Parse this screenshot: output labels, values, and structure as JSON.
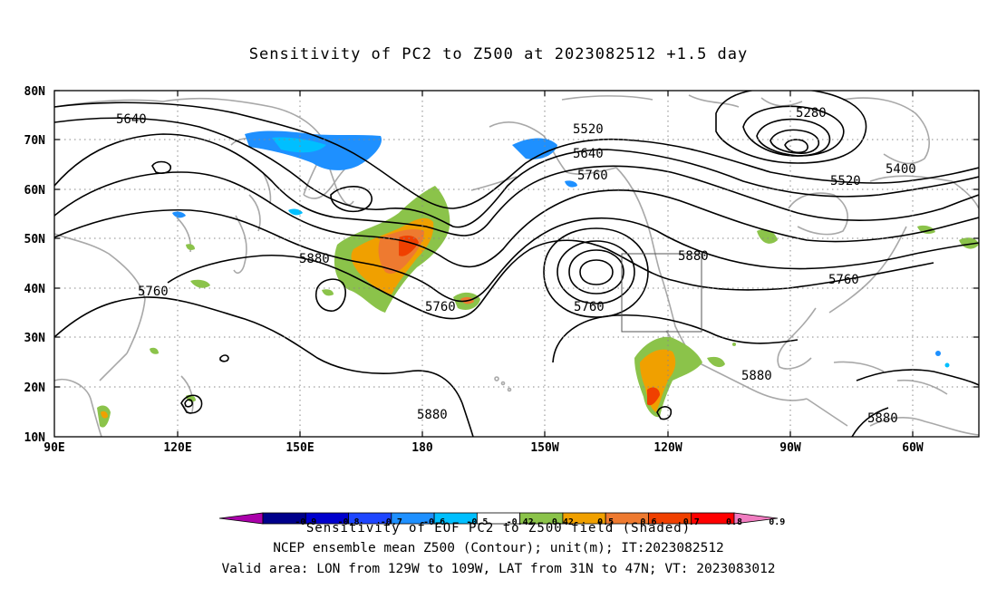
{
  "title": "Sensitivity of PC2 to Z500 at 2023082512 +1.5 day",
  "lat_labels": [
    "80N",
    "70N",
    "60N",
    "50N",
    "40N",
    "30N",
    "20N",
    "10N"
  ],
  "lon_labels": [
    "90E",
    "120E",
    "150E",
    "180",
    "150W",
    "120W",
    "90W",
    "60W"
  ],
  "contour_labels": [
    "5640",
    "5520",
    "5640",
    "5760",
    "5280",
    "5400",
    "5520",
    "5880",
    "5760",
    "5880",
    "5760",
    "5760",
    "5880",
    "5760",
    "5880",
    "5880"
  ],
  "colorbar": {
    "labels": [
      "-0.9",
      "-0.8",
      "-0.7",
      "-0.6",
      "-0.5",
      "-0.42",
      "0.42",
      "0.5",
      "0.6",
      "0.7",
      "0.8",
      "0.9"
    ],
    "colors": [
      "#aa00aa",
      "#00008b",
      "#0000cd",
      "#1e46ff",
      "#1e90ff",
      "#00bfff",
      "#ffffff",
      "#8bc34a",
      "#f0a000",
      "#ee7a30",
      "#f04000",
      "#ff0000",
      "#f07cc0"
    ]
  },
  "captions": {
    "line1": "Sensitivity of EOF PC2 to Z500 field (Shaded)",
    "line2": "NCEP ensemble mean Z500 (Contour); unit(m); IT:2023082512",
    "line3": "Valid area: LON from 129W to 109W, LAT from 31N to 47N; VT: 2023083012"
  },
  "valid_area": {
    "lon": [
      "129W",
      "109W"
    ],
    "lat": [
      "31N",
      "47N"
    ]
  }
}
